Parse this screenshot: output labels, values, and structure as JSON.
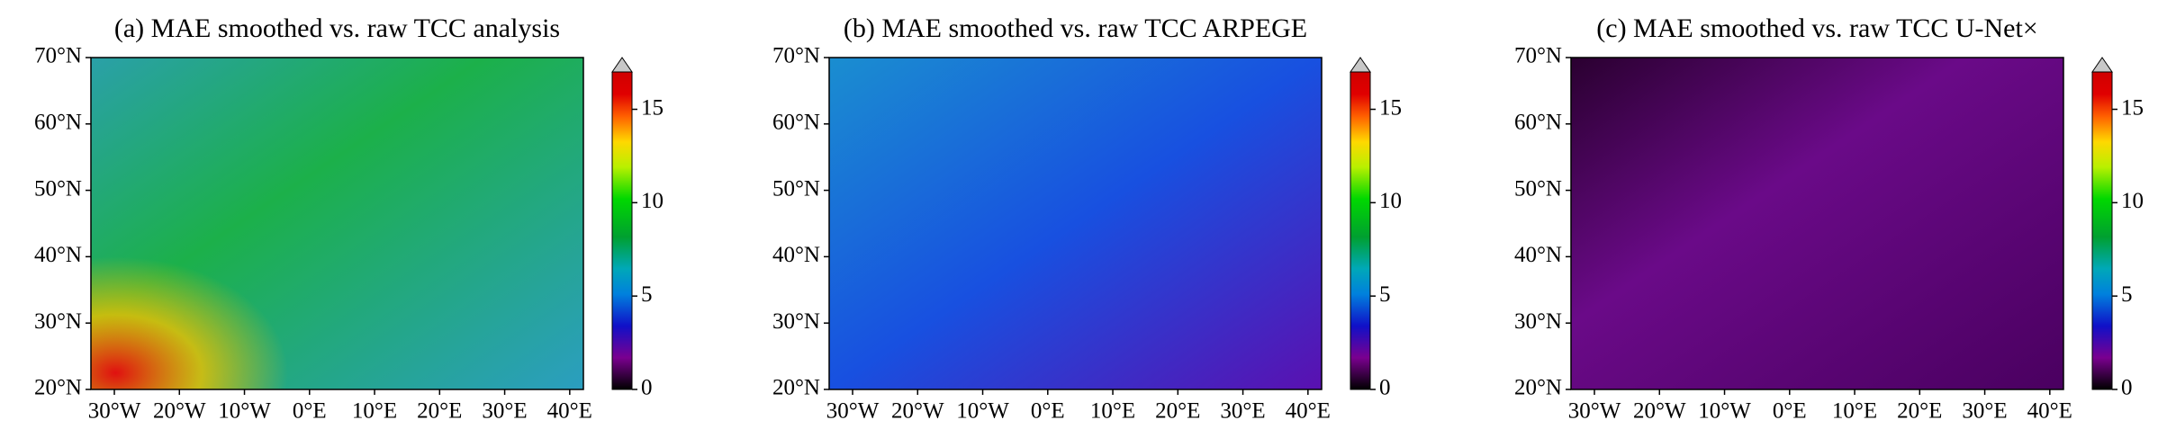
{
  "chart_data": [
    {
      "type": "heatmap",
      "title": "(a) MAE smoothed vs. raw TCC analysis",
      "xlim": [
        -33.6,
        42.1
      ],
      "ylim": [
        20,
        70
      ],
      "xticks": [
        {
          "value": -30,
          "label": "30°W"
        },
        {
          "value": -20,
          "label": "20°W"
        },
        {
          "value": -10,
          "label": "10°W"
        },
        {
          "value": 0,
          "label": "0°E"
        },
        {
          "value": 10,
          "label": "10°E"
        },
        {
          "value": 20,
          "label": "20°E"
        },
        {
          "value": 30,
          "label": "30°E"
        },
        {
          "value": 40,
          "label": "40°E"
        }
      ],
      "yticks": [
        {
          "value": 20,
          "label": "20°N"
        },
        {
          "value": 30,
          "label": "30°N"
        },
        {
          "value": 40,
          "label": "40°N"
        },
        {
          "value": 50,
          "label": "50°N"
        },
        {
          "value": 60,
          "label": "60°N"
        },
        {
          "value": 70,
          "label": "70°N"
        }
      ],
      "colorbar": {
        "lim": [
          0,
          17
        ],
        "ticks": [
          0,
          5,
          10,
          15
        ]
      }
    },
    {
      "type": "heatmap",
      "title": "(b) MAE smoothed vs. raw TCC ARPEGE",
      "xlim": [
        -33.6,
        42.1
      ],
      "ylim": [
        20,
        70
      ],
      "xticks": [
        {
          "value": -30,
          "label": "30°W"
        },
        {
          "value": -20,
          "label": "20°W"
        },
        {
          "value": -10,
          "label": "10°W"
        },
        {
          "value": 0,
          "label": "0°E"
        },
        {
          "value": 10,
          "label": "10°E"
        },
        {
          "value": 20,
          "label": "20°E"
        },
        {
          "value": 30,
          "label": "30°E"
        },
        {
          "value": 40,
          "label": "40°E"
        }
      ],
      "yticks": [
        {
          "value": 20,
          "label": "20°N"
        },
        {
          "value": 30,
          "label": "30°N"
        },
        {
          "value": 40,
          "label": "40°N"
        },
        {
          "value": 50,
          "label": "50°N"
        },
        {
          "value": 60,
          "label": "60°N"
        },
        {
          "value": 70,
          "label": "70°N"
        }
      ],
      "colorbar": {
        "lim": [
          0,
          17
        ],
        "ticks": [
          0,
          5,
          10,
          15
        ]
      }
    },
    {
      "type": "heatmap",
      "title": "(c) MAE smoothed vs. raw TCC U-Net×",
      "xlim": [
        -33.6,
        42.1
      ],
      "ylim": [
        20,
        70
      ],
      "xticks": [
        {
          "value": -30,
          "label": "30°W"
        },
        {
          "value": -20,
          "label": "20°W"
        },
        {
          "value": -10,
          "label": "10°W"
        },
        {
          "value": 0,
          "label": "0°E"
        },
        {
          "value": 10,
          "label": "10°E"
        },
        {
          "value": 20,
          "label": "20°E"
        },
        {
          "value": 30,
          "label": "30°E"
        },
        {
          "value": 40,
          "label": "40°E"
        }
      ],
      "yticks": [
        {
          "value": 20,
          "label": "20°N"
        },
        {
          "value": 30,
          "label": "30°N"
        },
        {
          "value": 40,
          "label": "40°N"
        },
        {
          "value": 50,
          "label": "50°N"
        },
        {
          "value": 60,
          "label": "60°N"
        },
        {
          "value": 70,
          "label": "70°N"
        }
      ],
      "colorbar": {
        "lim": [
          0,
          17
        ],
        "ticks": [
          0,
          5,
          10,
          15
        ]
      }
    }
  ]
}
